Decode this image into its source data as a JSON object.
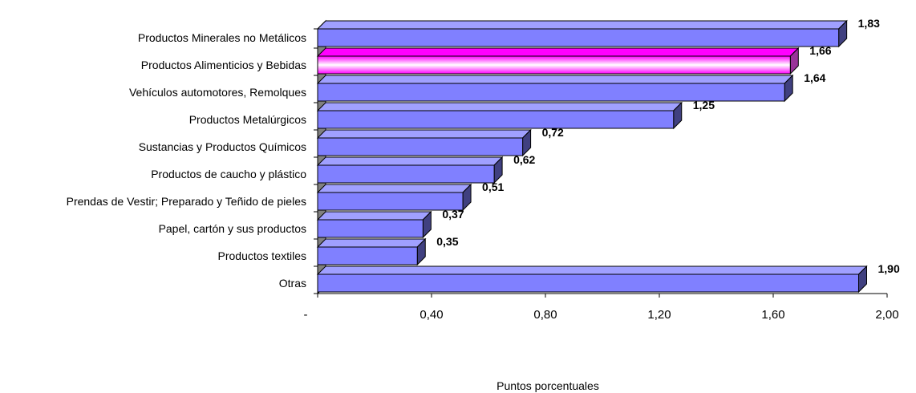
{
  "chart_data": {
    "type": "bar",
    "orientation": "horizontal",
    "categories": [
      "Productos Minerales no Metálicos",
      "Productos Alimenticios y Bebidas",
      "Vehículos automotores, Remolques",
      "Productos Metalúrgicos",
      "Sustancias y Productos Químicos",
      "Productos de caucho y plástico",
      "Prendas de Vestir; Preparado y Teñido de pieles",
      "Papel, cartón y sus productos",
      "Productos textiles",
      "Otras"
    ],
    "values": [
      1.83,
      1.66,
      1.64,
      1.25,
      0.72,
      0.62,
      0.51,
      0.37,
      0.35,
      1.9
    ],
    "value_labels": [
      "1,83",
      "1,66",
      "1,64",
      "1,25",
      "0,72",
      "0,62",
      "0,51",
      "0,37",
      "0,35",
      "1,90"
    ],
    "highlight_index": 1,
    "xlabel": "Puntos porcentuales",
    "ylabel": "",
    "title": "",
    "xlim": [
      0,
      2.0
    ],
    "x_ticks": [
      0,
      0.4,
      0.8,
      1.2,
      1.6,
      2.0
    ],
    "x_tick_labels": [
      "-",
      "0,40",
      "0,80",
      "1,20",
      "1,60",
      "2,00"
    ],
    "grid": false,
    "legend": "none",
    "colors": {
      "bar_fill": "#8080ff",
      "bar_side": "#404080",
      "bar_top": "#a0a0ff",
      "highlight_center": "#ffffff",
      "highlight_edge": "#ff00ff",
      "highlight_side": "#993399",
      "wall": "#808080"
    }
  }
}
